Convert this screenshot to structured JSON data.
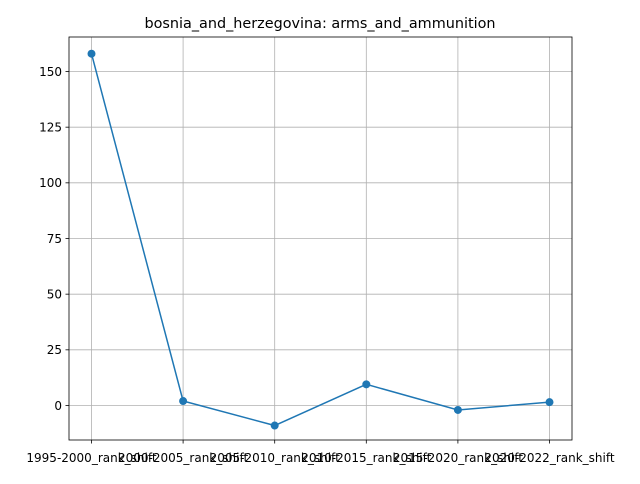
{
  "chart_data": {
    "type": "line",
    "title": "bosnia_and_herzegovina: arms_and_ammunition",
    "xlabel": "",
    "ylabel": "",
    "categories": [
      "1995-2000_rank_shift",
      "2000-2005_rank_shift",
      "2005-2010_rank_shift",
      "2010-2015_rank_shift",
      "2015-2020_rank_shift",
      "2020-2022_rank_shift"
    ],
    "series": [
      {
        "values": [
          158,
          2,
          -9,
          9.5,
          -2,
          1.5
        ]
      }
    ],
    "ylim": [
      -15.5,
      165.5
    ],
    "yticks": [
      0,
      25,
      50,
      75,
      100,
      125,
      150
    ],
    "grid": true,
    "colors": {
      "line": "#1f77b4",
      "grid": "#b0b0b0",
      "axis": "#000000"
    }
  }
}
